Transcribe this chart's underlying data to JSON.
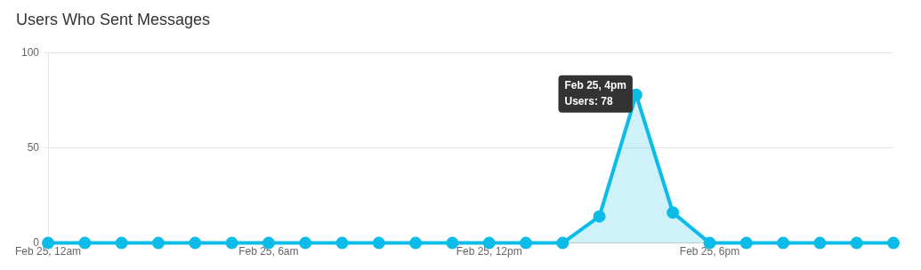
{
  "chart_data": {
    "type": "area",
    "title": "Users Who Sent Messages",
    "categories": [
      "Feb 25, 12am",
      null,
      null,
      null,
      null,
      null,
      "Feb 25, 6am",
      null,
      null,
      null,
      null,
      null,
      "Feb 25, 12pm",
      null,
      null,
      null,
      null,
      null,
      "Feb 25, 6pm",
      null,
      null,
      null,
      null,
      null
    ],
    "series": [
      {
        "color": "#0bbbe8",
        "values": [
          0,
          0,
          0,
          0,
          0,
          0,
          0,
          0,
          0,
          0,
          0,
          0,
          0,
          0,
          0,
          14,
          78,
          16,
          0,
          0,
          0,
          0,
          0,
          0
        ]
      }
    ],
    "ylim": [
      0,
      100
    ],
    "yticks": [
      0,
      50,
      100
    ],
    "grid": "y",
    "marker": "circle",
    "line_style": "solid",
    "legend": false,
    "annotations": [
      "Feb 25, 4pm\nUsers: 78"
    ]
  }
}
